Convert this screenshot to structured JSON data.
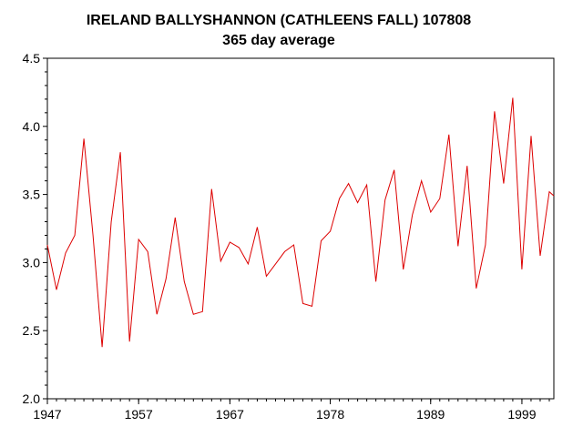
{
  "chart_data": {
    "type": "line",
    "title": "IRELAND BALLYSHANNON (CATHLEENS FALL) 107808",
    "subtitle": "365 day average",
    "xlabel": "",
    "ylabel": "",
    "xlim": [
      1947,
      2002.5
    ],
    "ylim": [
      2.0,
      4.5
    ],
    "grid": false,
    "x_ticks": [
      1947,
      1957,
      1967,
      1978,
      1989,
      1999
    ],
    "y_ticks": [
      "2.0",
      "2.5",
      "3.0",
      "3.5",
      "4.0",
      "4.5"
    ],
    "line_color": "#dd0000",
    "series": [
      {
        "x": [
          1947,
          1948,
          1949,
          1950,
          1951,
          1952,
          1953,
          1954,
          1955,
          1956,
          1957,
          1958,
          1959,
          1960,
          1961,
          1962,
          1963,
          1964,
          1965,
          1966,
          1967,
          1968,
          1969,
          1970,
          1971,
          1972,
          1973,
          1974,
          1975,
          1976,
          1977,
          1978,
          1979,
          1980,
          1981,
          1982,
          1983,
          1984,
          1985,
          1986,
          1987,
          1988,
          1989,
          1990,
          1991,
          1992,
          1993,
          1994,
          1995,
          1996,
          1997,
          1998,
          1999,
          2000,
          2001,
          2002,
          2002.5
        ],
        "y": [
          3.13,
          2.8,
          3.07,
          3.2,
          3.91,
          3.2,
          2.38,
          3.3,
          3.81,
          2.42,
          3.17,
          3.08,
          2.62,
          2.88,
          3.33,
          2.86,
          2.62,
          2.64,
          3.54,
          3.01,
          3.15,
          3.11,
          2.99,
          3.26,
          2.9,
          2.99,
          3.08,
          3.13,
          2.7,
          2.68,
          3.16,
          3.23,
          3.47,
          3.58,
          3.44,
          3.57,
          2.86,
          3.46,
          3.68,
          2.95,
          3.35,
          3.6,
          3.37,
          3.47,
          3.94,
          3.12,
          3.71,
          2.81,
          3.13,
          4.11,
          3.58,
          4.21,
          2.95,
          3.93,
          3.05,
          3.52,
          3.49
        ]
      }
    ]
  }
}
